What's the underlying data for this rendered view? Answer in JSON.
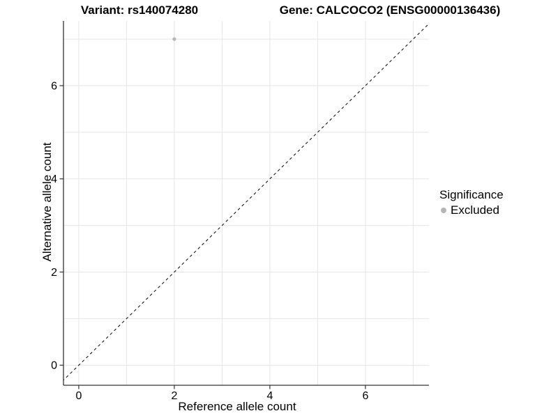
{
  "chart_data": {
    "type": "scatter",
    "titles": {
      "left": "Variant: rs140074280",
      "right": "Gene: CALCOCO2 (ENSG00000136436)"
    },
    "xlabel": "Reference allele count",
    "ylabel": "Alternative allele count",
    "xlim": [
      -0.32,
      7.33
    ],
    "ylim": [
      -0.43,
      7.39
    ],
    "xtick_labels": [
      "0",
      "2",
      "4",
      "6"
    ],
    "xtick_values": [
      0,
      2,
      4,
      6
    ],
    "ytick_labels": [
      "0",
      "2",
      "4",
      "6"
    ],
    "ytick_values": [
      0,
      2,
      4,
      6
    ],
    "xgrid_values": [
      0,
      1,
      2,
      3,
      4,
      5,
      6,
      7
    ],
    "ygrid_values": [
      0,
      1,
      2,
      3,
      4,
      5,
      6,
      7
    ],
    "grid": true,
    "legend": {
      "title": "Significance",
      "position": "right",
      "items": [
        {
          "label": "Excluded",
          "color": "#b5b5b5"
        }
      ]
    },
    "series": [
      {
        "name": "Excluded",
        "points": [
          [
            2,
            7
          ]
        ],
        "color": "#b5b5b5",
        "marker": "circle",
        "size": 2.6
      }
    ],
    "reference_line": {
      "kind": "identity",
      "equation": "y = x",
      "style": "dashed",
      "color": "#000000"
    },
    "colors": {
      "background": "#ffffff",
      "grid": "#e6e6e6",
      "axis_line": "#333333",
      "text": "#000000"
    }
  }
}
